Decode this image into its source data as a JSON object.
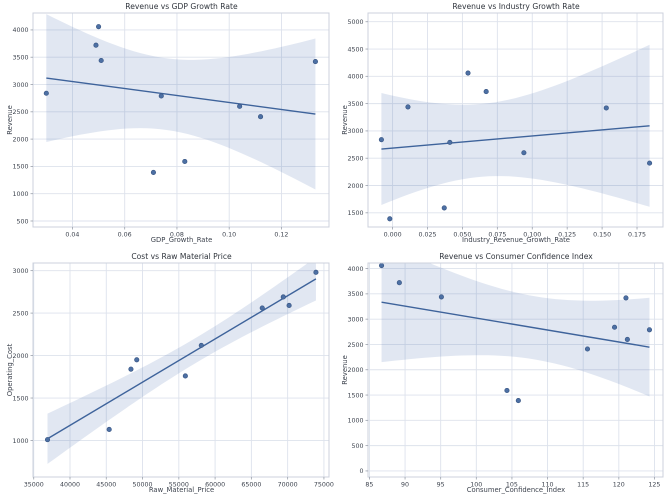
{
  "figure": {
    "background": "#ffffff",
    "accent": "#4c72b0",
    "point_fill": "#4d70a4",
    "point_edge": "#3a5785",
    "line_color": "#3e639b",
    "band_color": "#4c72b0",
    "band_opacity": 0.17,
    "grid_color": "#dde2ec",
    "spine_color": "#ccd1dc",
    "tick_color": "#9aa0ab",
    "text_color": "#3d434e",
    "title_color": "#30353d",
    "layout": {
      "rows": 2,
      "cols": 2,
      "grid": true,
      "legend": "none"
    }
  },
  "chart_data": [
    {
      "id": "revenue-vs-gdp",
      "type": "scatter",
      "title": "Revenue vs GDP Growth Rate",
      "xlabel": "GDP_Growth_Rate",
      "ylabel": "Revenue",
      "regression_line": true,
      "confidence_band_pct": 95,
      "trend": "negative",
      "points": [
        [
          0.03,
          2840
        ],
        [
          0.049,
          3720
        ],
        [
          0.05,
          4060
        ],
        [
          0.051,
          3440
        ],
        [
          0.071,
          1390
        ],
        [
          0.074,
          2790
        ],
        [
          0.083,
          1590
        ],
        [
          0.104,
          2600
        ],
        [
          0.112,
          2410
        ],
        [
          0.133,
          3420
        ]
      ],
      "xlim": [
        0.0249,
        0.1382
      ],
      "ylim": [
        390,
        4310
      ],
      "xticks": [
        0.04,
        0.06,
        0.08,
        0.1,
        0.12
      ],
      "yticks": [
        500,
        1000,
        1500,
        2000,
        2500,
        3000,
        3500,
        4000
      ],
      "x_decimals": 2
    },
    {
      "id": "revenue-vs-industry",
      "type": "scatter",
      "title": "Revenue vs Industry Growth Rate",
      "xlabel": "Industry_Revenue_Growth_Rate",
      "ylabel": "Revenue",
      "regression_line": true,
      "confidence_band_pct": 95,
      "trend": "positive",
      "points": [
        [
          -0.008,
          2840
        ],
        [
          -0.002,
          1390
        ],
        [
          0.011,
          3440
        ],
        [
          0.037,
          1590
        ],
        [
          0.041,
          2790
        ],
        [
          0.054,
          4060
        ],
        [
          0.067,
          3720
        ],
        [
          0.094,
          2600
        ],
        [
          0.153,
          3420
        ],
        [
          0.184,
          2410
        ]
      ],
      "xlim": [
        -0.0176,
        0.1936
      ],
      "ylim": [
        1240,
        5160
      ],
      "xticks": [
        0.0,
        0.025,
        0.05,
        0.075,
        0.1,
        0.125,
        0.15,
        0.175
      ],
      "yticks": [
        1500,
        2000,
        2500,
        3000,
        3500,
        4000,
        4500,
        5000
      ],
      "x_decimals": 3
    },
    {
      "id": "cost-vs-raw-material",
      "type": "scatter",
      "title": "Cost vs Raw Material Price",
      "xlabel": "Raw_Material_Price",
      "ylabel": "Operating_Cost",
      "regression_line": true,
      "confidence_band_pct": 95,
      "trend": "positive",
      "points": [
        [
          36900,
          1010
        ],
        [
          45400,
          1130
        ],
        [
          48400,
          1840
        ],
        [
          49200,
          1950
        ],
        [
          55900,
          1760
        ],
        [
          58100,
          2120
        ],
        [
          66500,
          2560
        ],
        [
          69400,
          2690
        ],
        [
          70200,
          2590
        ],
        [
          73900,
          2980
        ]
      ],
      "xlim": [
        34900,
        75700
      ],
      "ylim": [
        570,
        3090
      ],
      "xticks": [
        35000,
        40000,
        45000,
        50000,
        55000,
        60000,
        65000,
        70000,
        75000
      ],
      "yticks": [
        1000,
        1500,
        2000,
        2500,
        3000
      ],
      "x_decimals": 0
    },
    {
      "id": "revenue-vs-confidence",
      "type": "scatter",
      "title": "Revenue vs Consumer Confidence Index",
      "xlabel": "Consumer_Confidence_Index",
      "ylabel": "Revenue",
      "regression_line": true,
      "confidence_band_pct": 95,
      "trend": "negative",
      "points": [
        [
          86.7,
          4060
        ],
        [
          89.2,
          3720
        ],
        [
          95.1,
          3440
        ],
        [
          104.3,
          1590
        ],
        [
          105.9,
          1390
        ],
        [
          115.6,
          2410
        ],
        [
          119.4,
          2840
        ],
        [
          121.0,
          3420
        ],
        [
          121.2,
          2600
        ],
        [
          124.3,
          2790
        ]
      ],
      "xlim": [
        84.8,
        126.2
      ],
      "ylim": [
        -120,
        4110
      ],
      "xticks": [
        85,
        90,
        95,
        100,
        105,
        110,
        115,
        120,
        125
      ],
      "yticks": [
        0,
        500,
        1000,
        1500,
        2000,
        2500,
        3000,
        3500,
        4000
      ],
      "x_decimals": 0
    }
  ]
}
